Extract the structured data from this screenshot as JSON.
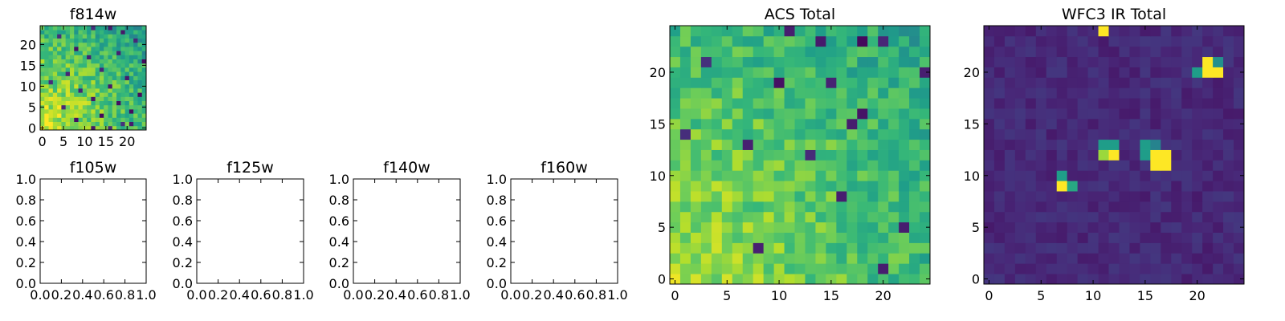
{
  "chart_data": [
    {
      "type": "heatmap",
      "title": "f814w",
      "xlim": [
        -0.5,
        24.5
      ],
      "ylim": [
        -0.5,
        24.5
      ],
      "xticks": [
        0,
        5,
        10,
        15,
        20
      ],
      "yticks": [
        0,
        5,
        10,
        15,
        20
      ],
      "xtick_labels": [
        "0",
        "5",
        "10",
        "15",
        "20"
      ],
      "ytick_labels": [
        "0",
        "5",
        "10",
        "15",
        "20"
      ],
      "colormap": "viridis",
      "grid_size": [
        25,
        25
      ],
      "value_description": "brighter toward lower-left, scattered dark pixels",
      "dark_pixels": [
        [
          12,
          24
        ],
        [
          16,
          24
        ],
        [
          19,
          23
        ],
        [
          4,
          22
        ],
        [
          22,
          21
        ],
        [
          8,
          19
        ],
        [
          18,
          18
        ],
        [
          11,
          17
        ],
        [
          24,
          16
        ],
        [
          14,
          14
        ],
        [
          6,
          13
        ],
        [
          20,
          12
        ],
        [
          2,
          11
        ],
        [
          16,
          10
        ],
        [
          9,
          9
        ],
        [
          23,
          8
        ],
        [
          12,
          7
        ],
        [
          18,
          6
        ],
        [
          5,
          5
        ],
        [
          21,
          4
        ],
        [
          14,
          3
        ],
        [
          8,
          2
        ],
        [
          19,
          1
        ],
        [
          12,
          0
        ],
        [
          16,
          0
        ],
        [
          21,
          1
        ]
      ]
    },
    {
      "type": "empty",
      "title": "f105w",
      "xlim": [
        0,
        1
      ],
      "ylim": [
        0,
        1
      ],
      "xtick_labels": [
        "0.0",
        "0.2",
        "0.4",
        "0.6",
        "0.8",
        "1.0"
      ],
      "ytick_labels": [
        "0.0",
        "0.2",
        "0.4",
        "0.6",
        "0.8",
        "1.0"
      ]
    },
    {
      "type": "empty",
      "title": "f125w",
      "xlim": [
        0,
        1
      ],
      "ylim": [
        0,
        1
      ],
      "xtick_labels": [
        "0.0",
        "0.2",
        "0.4",
        "0.6",
        "0.8",
        "1.0"
      ],
      "ytick_labels": [
        "0.0",
        "0.2",
        "0.4",
        "0.6",
        "0.8",
        "1.0"
      ]
    },
    {
      "type": "empty",
      "title": "f140w",
      "xlim": [
        0,
        1
      ],
      "ylim": [
        0,
        1
      ],
      "xtick_labels": [
        "0.0",
        "0.2",
        "0.4",
        "0.6",
        "0.8",
        "1.0"
      ],
      "ytick_labels": [
        "0.0",
        "0.2",
        "0.4",
        "0.6",
        "0.8",
        "1.0"
      ]
    },
    {
      "type": "empty",
      "title": "f160w",
      "xlim": [
        0,
        1
      ],
      "ylim": [
        0,
        1
      ],
      "xtick_labels": [
        "0.0",
        "0.2",
        "0.4",
        "0.6",
        "0.8",
        "1.0"
      ],
      "ytick_labels": [
        "0.0",
        "0.2",
        "0.4",
        "0.6",
        "0.8",
        "1.0"
      ]
    },
    {
      "type": "heatmap",
      "title": "ACS Total",
      "xlim": [
        -0.5,
        24.5
      ],
      "ylim": [
        -0.5,
        24.5
      ],
      "xticks": [
        0,
        5,
        10,
        15,
        20
      ],
      "yticks": [
        0,
        5,
        10,
        15,
        20
      ],
      "xtick_labels": [
        "0",
        "5",
        "10",
        "15",
        "20"
      ],
      "ytick_labels": [
        "0",
        "5",
        "10",
        "15",
        "20"
      ],
      "colormap": "viridis",
      "grid_size": [
        25,
        25
      ],
      "value_description": "green field, yellow toward lower-left, scattered dark pixels",
      "dark_pixels": [
        [
          11,
          24
        ],
        [
          14,
          23
        ],
        [
          18,
          23
        ],
        [
          20,
          23
        ],
        [
          24,
          20
        ],
        [
          10,
          19
        ],
        [
          18,
          16
        ],
        [
          13,
          12
        ],
        [
          22,
          5
        ],
        [
          20,
          1
        ],
        [
          8,
          3
        ],
        [
          16,
          8
        ],
        [
          17,
          15
        ],
        [
          3,
          21
        ],
        [
          1,
          14
        ],
        [
          15,
          19
        ],
        [
          7,
          13
        ]
      ]
    },
    {
      "type": "heatmap",
      "title": "WFC3 IR Total",
      "xlim": [
        -0.5,
        24.5
      ],
      "ylim": [
        -0.5,
        24.5
      ],
      "xticks": [
        0,
        5,
        10,
        15,
        20
      ],
      "yticks": [
        0,
        5,
        10,
        15,
        20
      ],
      "xtick_labels": [
        "0",
        "5",
        "10",
        "15",
        "20"
      ],
      "ytick_labels": [
        "0",
        "5",
        "10",
        "15",
        "20"
      ],
      "colormap": "viridis",
      "grid_size": [
        25,
        25
      ],
      "value_description": "dark purple background with bright point sources",
      "bright_pixels": [
        {
          "x": 11,
          "y": 24,
          "v": 1.0
        },
        {
          "x": 21,
          "y": 21,
          "v": 1.0
        },
        {
          "x": 22,
          "y": 21,
          "v": 0.5
        },
        {
          "x": 21,
          "y": 20,
          "v": 1.0
        },
        {
          "x": 22,
          "y": 20,
          "v": 1.0
        },
        {
          "x": 20,
          "y": 20,
          "v": 0.55
        },
        {
          "x": 11,
          "y": 13,
          "v": 0.55
        },
        {
          "x": 12,
          "y": 13,
          "v": 0.55
        },
        {
          "x": 11,
          "y": 12,
          "v": 0.85
        },
        {
          "x": 12,
          "y": 12,
          "v": 1.0
        },
        {
          "x": 15,
          "y": 13,
          "v": 0.55
        },
        {
          "x": 16,
          "y": 13,
          "v": 0.45
        },
        {
          "x": 15,
          "y": 12,
          "v": 0.55
        },
        {
          "x": 16,
          "y": 12,
          "v": 1.0
        },
        {
          "x": 17,
          "y": 12,
          "v": 1.0
        },
        {
          "x": 16,
          "y": 11,
          "v": 1.0
        },
        {
          "x": 17,
          "y": 11,
          "v": 1.0
        },
        {
          "x": 7,
          "y": 10,
          "v": 0.55
        },
        {
          "x": 7,
          "y": 9,
          "v": 1.0
        },
        {
          "x": 8,
          "y": 9,
          "v": 0.6
        }
      ]
    }
  ]
}
